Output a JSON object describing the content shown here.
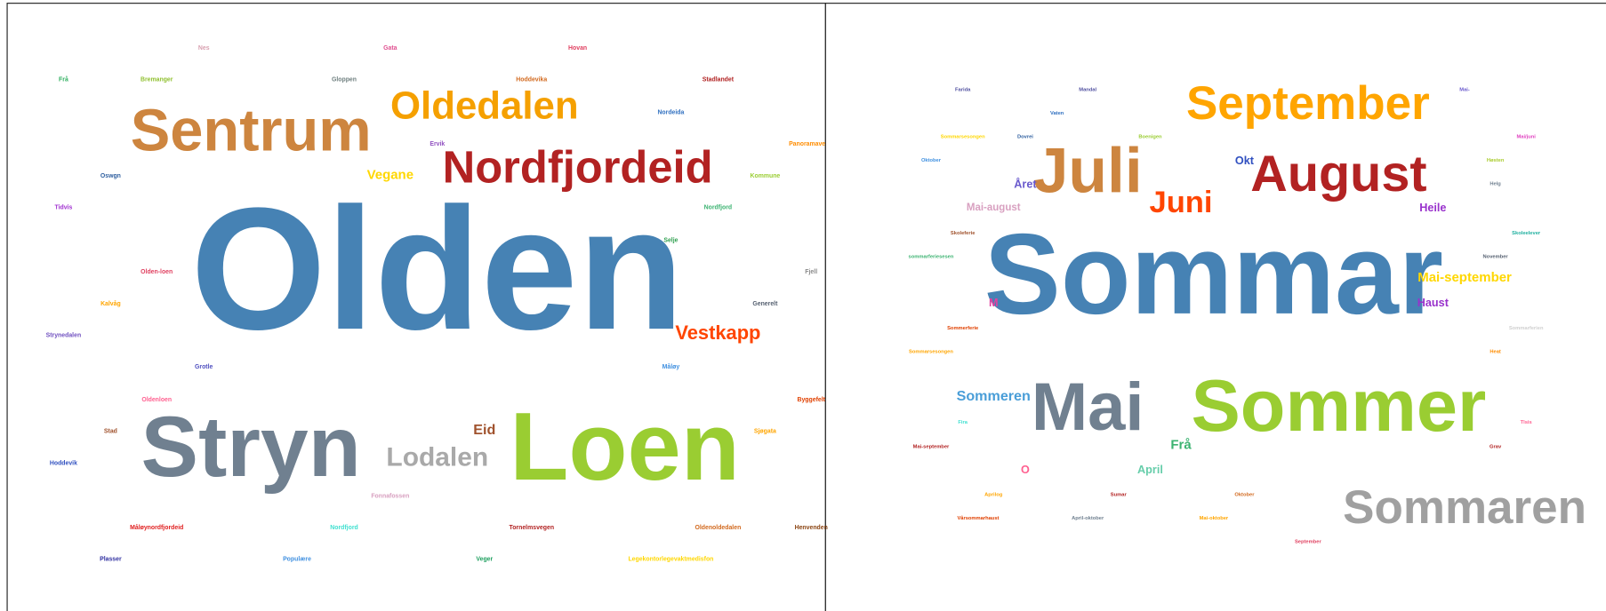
{
  "clouds": [
    {
      "words": [
        {
          "text": "Nes",
          "color": "#d8a0b0"
        },
        {
          "text": "Gata",
          "color": "#e05090"
        },
        {
          "text": "Hovan",
          "color": "#e04060"
        },
        {
          "text": "Frå",
          "color": "#30b060"
        },
        {
          "text": "Bremanger",
          "color": "#90c030"
        },
        {
          "text": "Gloppen",
          "color": "#708080"
        },
        {
          "text": "Hoddevika",
          "color": "#d2691e"
        },
        {
          "text": "Stadlandet",
          "color": "#b02020"
        },
        {
          "text": "Oldedalen",
          "color": "#f5a000"
        },
        {
          "text": "Nordeida",
          "color": "#3070c0"
        },
        {
          "text": "Sentrum",
          "color": "#cd853f"
        },
        {
          "text": "Ervik",
          "color": "#9050c0"
        },
        {
          "text": "Panoramave",
          "color": "#ff8c00"
        },
        {
          "text": "Nordfjordeid",
          "color": "#b22222"
        },
        {
          "text": "Vegane",
          "color": "#ffd700"
        },
        {
          "text": "Oswgn",
          "color": "#3060a0"
        },
        {
          "text": "Kommune",
          "color": "#9acd32"
        },
        {
          "text": "Tidvis",
          "color": "#a030d0"
        },
        {
          "text": "Nordfjord",
          "color": "#3cb371"
        },
        {
          "text": "Olden",
          "color": "#4682b4"
        },
        {
          "text": "Selje",
          "color": "#30a050"
        },
        {
          "text": "Olden-loen",
          "color": "#e04060"
        },
        {
          "text": "Fjell",
          "color": "#888888"
        },
        {
          "text": "Kalvåg",
          "color": "#ffa500"
        },
        {
          "text": "Generelt",
          "color": "#556070"
        },
        {
          "text": "Vestkapp",
          "color": "#ff4500"
        },
        {
          "text": "Strynedalen",
          "color": "#7050c0"
        },
        {
          "text": "Grotle",
          "color": "#5050c0"
        },
        {
          "text": "Måløy",
          "color": "#4090e0"
        },
        {
          "text": "Oldenloen",
          "color": "#ff6090"
        },
        {
          "text": "Byggefelt",
          "color": "#e04000"
        },
        {
          "text": "Stad",
          "color": "#a0522d"
        },
        {
          "text": "Eid",
          "color": "#a0522d"
        },
        {
          "text": "Stryn",
          "color": "#708090"
        },
        {
          "text": "Lodalen",
          "color": "#a9a9a9"
        },
        {
          "text": "Loen",
          "color": "#9acd32"
        },
        {
          "text": "Sjøgata",
          "color": "#ffa500"
        },
        {
          "text": "Hoddevik",
          "color": "#3050c0"
        },
        {
          "text": "Fonnafossen",
          "color": "#d8a0c0"
        },
        {
          "text": "Måløynordfjordeid",
          "color": "#e02020"
        },
        {
          "text": "Nordfjord",
          "color": "#40e0d0"
        },
        {
          "text": "Tornelmsvegen",
          "color": "#b22222"
        },
        {
          "text": "Oldenoldedalen",
          "color": "#d2691e"
        },
        {
          "text": "Henvenden",
          "color": "#8b4513"
        },
        {
          "text": "Plasser",
          "color": "#3030a0"
        },
        {
          "text": "Populære",
          "color": "#4090e0"
        },
        {
          "text": "Veger",
          "color": "#20a060"
        },
        {
          "text": "Legekontorlegevaktmedisfon",
          "color": "#ffd700"
        }
      ]
    },
    {
      "words": [
        {
          "text": "Farida",
          "color": "#5050a0"
        },
        {
          "text": "Mandal",
          "color": "#5050a0"
        },
        {
          "text": "Mai-",
          "color": "#6a5acd"
        },
        {
          "text": "September",
          "color": "#ffa500"
        },
        {
          "text": "Vaten",
          "color": "#3070c0"
        },
        {
          "text": "Sommarsesongen",
          "color": "#ffd700"
        },
        {
          "text": "Dovrei",
          "color": "#3060a0"
        },
        {
          "text": "Boenigen",
          "color": "#9acd32"
        },
        {
          "text": "Mai/juni",
          "color": "#e040c0"
        },
        {
          "text": "Juli",
          "color": "#cd853f"
        },
        {
          "text": "Oktober",
          "color": "#4090e0"
        },
        {
          "text": "Okt",
          "color": "#3050c0"
        },
        {
          "text": "August",
          "color": "#b22222"
        },
        {
          "text": "Høsten",
          "color": "#aacc30"
        },
        {
          "text": "Året",
          "color": "#6a5acd"
        },
        {
          "text": "Juni",
          "color": "#ff4500"
        },
        {
          "text": "Heile",
          "color": "#9932cc"
        },
        {
          "text": "Mai-august",
          "color": "#d8a0c0"
        },
        {
          "text": "Helg",
          "color": "#708090"
        },
        {
          "text": "Skoleferie",
          "color": "#a0522d"
        },
        {
          "text": "Skoleelever",
          "color": "#20b0a0"
        },
        {
          "text": "Sommar",
          "color": "#4682b4"
        },
        {
          "text": "sommarferiesesen",
          "color": "#3cb371"
        },
        {
          "text": "November",
          "color": "#556070"
        },
        {
          "text": "Mai-september",
          "color": "#ffd700"
        },
        {
          "text": "M",
          "color": "#e040a0"
        },
        {
          "text": "Haust",
          "color": "#9932cc"
        },
        {
          "text": "Sommerferie",
          "color": "#e04000"
        },
        {
          "text": "Sommarferien",
          "color": "#d0d0d0"
        },
        {
          "text": "Sommarsesongen",
          "color": "#ffa500"
        },
        {
          "text": "Heat",
          "color": "#ff8c00"
        },
        {
          "text": "Sommeren",
          "color": "#4a9ed8"
        },
        {
          "text": "Mai",
          "color": "#708090"
        },
        {
          "text": "Sommer",
          "color": "#9acd32"
        },
        {
          "text": "Fira",
          "color": "#40e0d0"
        },
        {
          "text": "Tlsis",
          "color": "#ff6090"
        },
        {
          "text": "Frå",
          "color": "#3cb371"
        },
        {
          "text": "Mai-september",
          "color": "#b22222"
        },
        {
          "text": "Grav",
          "color": "#b22222"
        },
        {
          "text": "O",
          "color": "#ff6090"
        },
        {
          "text": "April",
          "color": "#66cdaa"
        },
        {
          "text": "Sommaren",
          "color": "#a0a0a0"
        },
        {
          "text": "Aprilog",
          "color": "#ffa500"
        },
        {
          "text": "Sumar",
          "color": "#b22222"
        },
        {
          "text": "Oktober",
          "color": "#d2691e"
        },
        {
          "text": "Vårsommarhaust",
          "color": "#e04000"
        },
        {
          "text": "April-oktober",
          "color": "#708090"
        },
        {
          "text": "Mai-oktober",
          "color": "#ffa500"
        },
        {
          "text": "September",
          "color": "#e04060"
        }
      ]
    }
  ]
}
